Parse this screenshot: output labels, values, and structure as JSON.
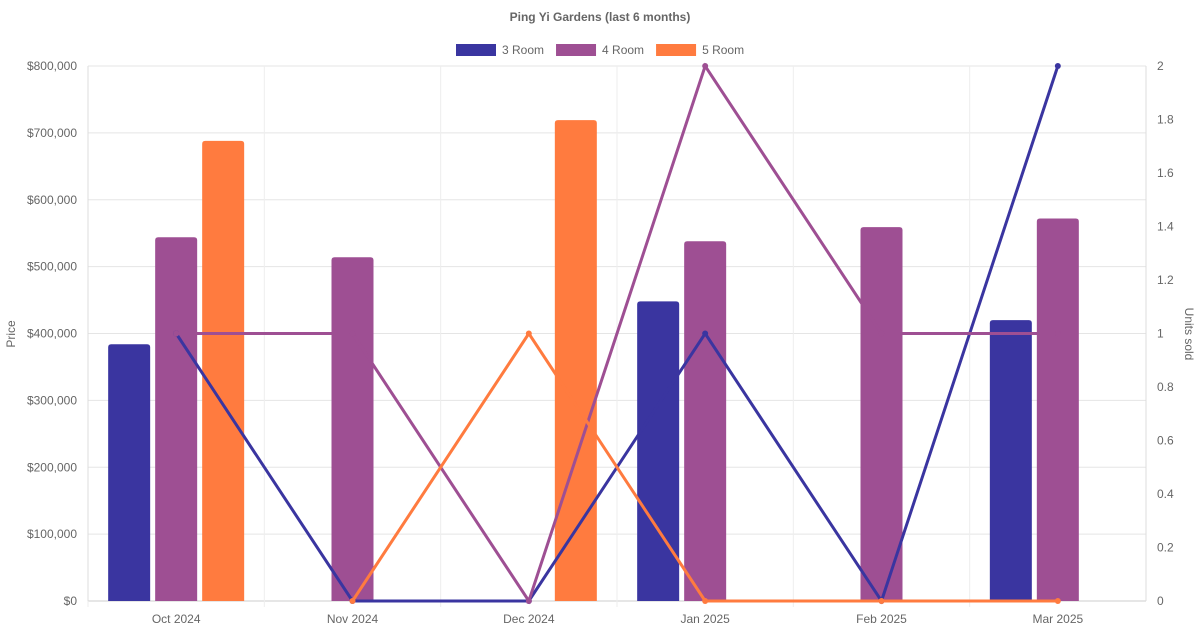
{
  "chart_data": {
    "type": "bar",
    "title": "Ping Yi Gardens (last 6 months)",
    "categories": [
      "Oct 2024",
      "Nov 2024",
      "Dec 2024",
      "Jan 2025",
      "Feb 2025",
      "Mar 2025"
    ],
    "ylabel": "Price",
    "y2label": "Units sold",
    "ylim": [
      0,
      800000
    ],
    "y2lim": [
      0,
      2
    ],
    "yticks": [
      "$0",
      "$100,000",
      "$200,000",
      "$300,000",
      "$400,000",
      "$500,000",
      "$600,000",
      "$700,000",
      "$800,000"
    ],
    "y2ticks": [
      "0",
      "0.2",
      "0.4",
      "0.6",
      "0.8",
      "1",
      "1.2",
      "1.4",
      "1.6",
      "1.8",
      "2"
    ],
    "legend_position": "top",
    "grid": true,
    "series": [
      {
        "name": "3 Room",
        "color": "#3a35a0",
        "price": [
          384000,
          null,
          null,
          448000,
          null,
          420000
        ],
        "units": [
          1,
          0,
          0,
          1,
          0,
          2
        ]
      },
      {
        "name": "4 Room",
        "color": "#9e4f93",
        "price": [
          544000,
          514000,
          null,
          538000,
          559000,
          572000
        ],
        "units": [
          1,
          1,
          0,
          2,
          1,
          1
        ]
      },
      {
        "name": "5 Room",
        "color": "#ff7b3f",
        "price": [
          688000,
          null,
          719000,
          null,
          null,
          null
        ],
        "units": [
          null,
          0,
          1,
          0,
          0,
          0
        ]
      }
    ]
  }
}
